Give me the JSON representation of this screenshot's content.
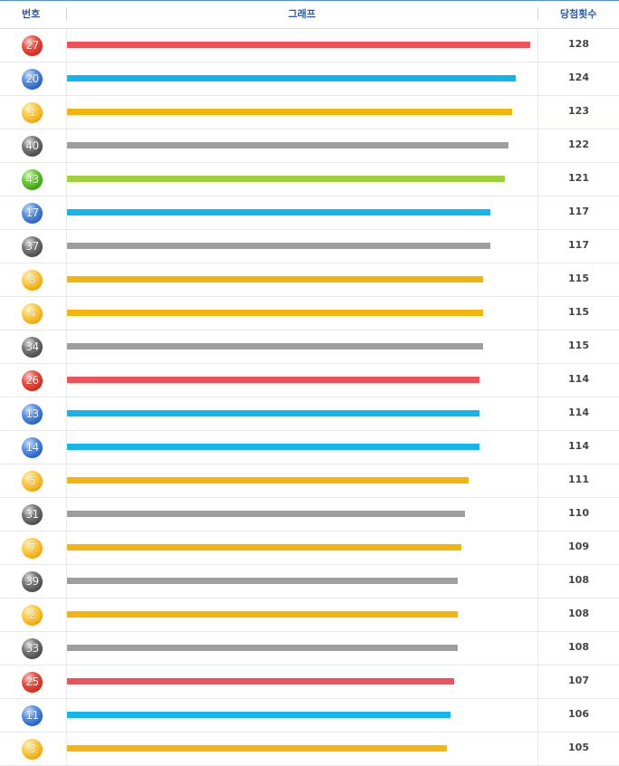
{
  "header": {
    "number": "번호",
    "graph": "그래프",
    "count": "당첨횟수"
  },
  "colors": {
    "yellow": "#f5b40a",
    "blue": "#11b6ec",
    "red": "#f25059",
    "gray": "#9e9e9e",
    "green": "#9fd139"
  },
  "max_count": 128,
  "rows": [
    {
      "number": "27",
      "count": "128",
      "value": 128,
      "color": "red"
    },
    {
      "number": "20",
      "count": "124",
      "value": 124,
      "color": "blue"
    },
    {
      "number": "1",
      "count": "123",
      "value": 123,
      "color": "yellow"
    },
    {
      "number": "40",
      "count": "122",
      "value": 122,
      "color": "gray"
    },
    {
      "number": "43",
      "count": "121",
      "value": 121,
      "color": "green"
    },
    {
      "number": "17",
      "count": "117",
      "value": 117,
      "color": "blue"
    },
    {
      "number": "37",
      "count": "117",
      "value": 117,
      "color": "gray"
    },
    {
      "number": "8",
      "count": "115",
      "value": 115,
      "color": "yellow"
    },
    {
      "number": "4",
      "count": "115",
      "value": 115,
      "color": "yellow"
    },
    {
      "number": "34",
      "count": "115",
      "value": 115,
      "color": "gray"
    },
    {
      "number": "26",
      "count": "114",
      "value": 114,
      "color": "red"
    },
    {
      "number": "13",
      "count": "114",
      "value": 114,
      "color": "blue"
    },
    {
      "number": "14",
      "count": "114",
      "value": 114,
      "color": "blue"
    },
    {
      "number": "5",
      "count": "111",
      "value": 111,
      "color": "yellow"
    },
    {
      "number": "31",
      "count": "110",
      "value": 110,
      "color": "gray"
    },
    {
      "number": "7",
      "count": "109",
      "value": 109,
      "color": "yellow"
    },
    {
      "number": "39",
      "count": "108",
      "value": 108,
      "color": "gray"
    },
    {
      "number": "2",
      "count": "108",
      "value": 108,
      "color": "yellow"
    },
    {
      "number": "33",
      "count": "108",
      "value": 108,
      "color": "gray"
    },
    {
      "number": "25",
      "count": "107",
      "value": 107,
      "color": "red"
    },
    {
      "number": "11",
      "count": "106",
      "value": 106,
      "color": "blue"
    },
    {
      "number": "3",
      "count": "105",
      "value": 105,
      "color": "yellow"
    }
  ]
}
